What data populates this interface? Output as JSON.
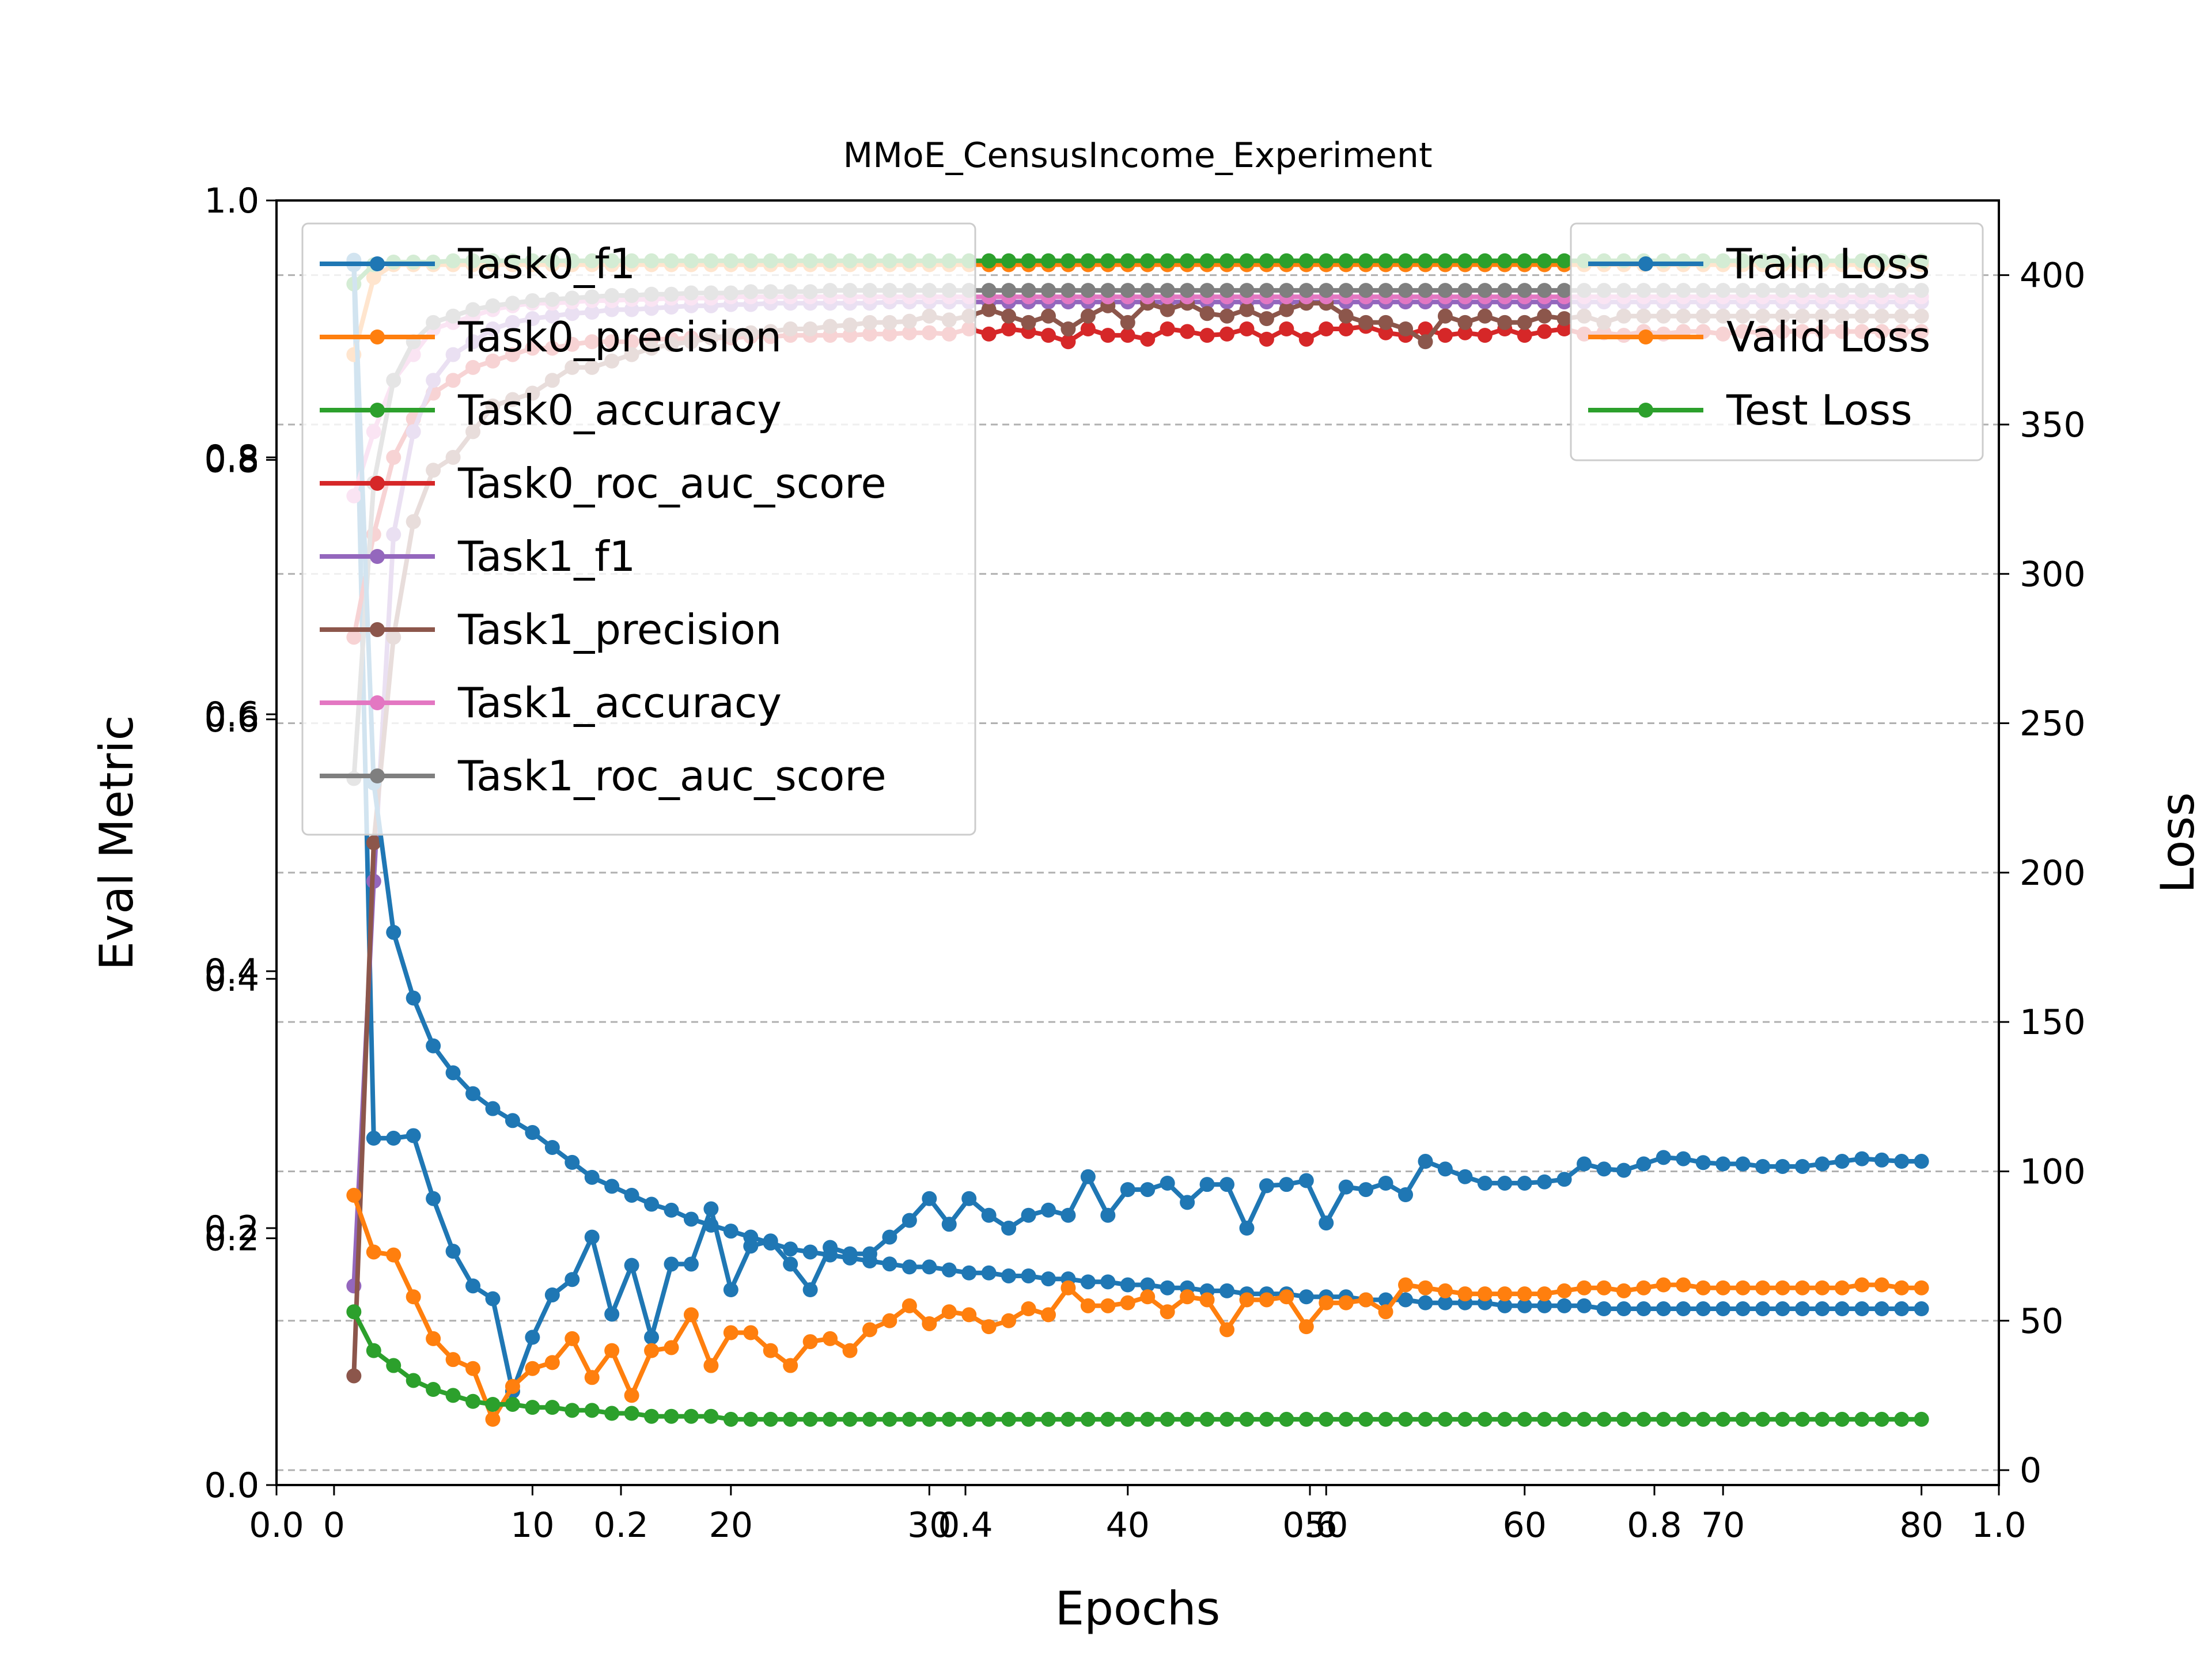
{
  "chart_data": {
    "type": "line",
    "title": "MMoE_CensusIncome_Experiment",
    "xlabel": "Epochs",
    "ylabel_left": "Eval Metric",
    "ylabel_right": "Loss",
    "grid": "horizontal dashed (right axis)",
    "x": [
      1,
      2,
      3,
      4,
      5,
      6,
      7,
      8,
      9,
      10,
      11,
      12,
      13,
      14,
      15,
      16,
      17,
      18,
      19,
      20,
      21,
      22,
      23,
      24,
      25,
      26,
      27,
      28,
      29,
      30,
      31,
      32,
      33,
      34,
      35,
      36,
      37,
      38,
      39,
      40,
      41,
      42,
      43,
      44,
      45,
      46,
      47,
      48,
      49,
      50,
      51,
      52,
      53,
      54,
      55,
      56,
      57,
      58,
      59,
      60,
      61,
      62,
      63,
      64,
      65,
      66,
      67,
      68,
      69,
      70,
      71,
      72,
      73,
      74,
      75,
      76,
      77,
      78,
      79,
      80
    ],
    "xlim": [
      -2.9,
      83.9
    ],
    "xticks": [
      0,
      10,
      20,
      30,
      40,
      50,
      60,
      70,
      80
    ],
    "extra_xticks": [
      0.0,
      0.2,
      0.4,
      0.6,
      0.8,
      1.0
    ],
    "left_axis": {
      "ylim": [
        0.0,
        1.0
      ],
      "yticks": [
        "0.0",
        "0.2",
        "0.4",
        "0.6",
        "0.8",
        "1.0"
      ],
      "legend_location": "upper left",
      "series": [
        {
          "name": "Task0_f1",
          "color": "#1f77b4",
          "values": [
            0.95,
            0.27,
            0.27,
            0.272,
            0.223,
            0.182,
            0.155,
            0.145,
            0.073,
            0.115,
            0.148,
            0.16,
            0.193,
            0.133,
            0.171,
            0.115,
            0.172,
            0.172,
            0.215,
            0.152,
            0.186,
            0.19,
            0.172,
            0.152,
            0.185,
            0.18,
            0.18,
            0.193,
            0.206,
            0.223,
            0.203,
            0.223,
            0.21,
            0.2,
            0.21,
            0.214,
            0.21,
            0.24,
            0.21,
            0.23,
            0.23,
            0.235,
            0.22,
            0.234,
            0.234,
            0.2,
            0.233,
            0.234,
            0.237,
            0.204,
            0.232,
            0.23,
            0.235,
            0.226,
            0.252,
            0.246,
            0.24,
            0.235,
            0.235,
            0.235,
            0.236,
            0.238,
            0.25,
            0.246,
            0.245,
            0.25,
            0.255,
            0.254,
            0.251,
            0.25,
            0.25,
            0.248,
            0.248,
            0.248,
            0.25,
            0.252,
            0.254,
            0.253,
            0.252,
            0.252
          ]
        },
        {
          "name": "Task0_precision",
          "color": "#ff7f0e",
          "values": [
            0.88,
            0.94,
            0.95,
            0.95,
            0.95,
            0.95,
            0.95,
            0.95,
            0.95,
            0.95,
            0.95,
            0.95,
            0.95,
            0.95,
            0.95,
            0.95,
            0.95,
            0.95,
            0.95,
            0.95,
            0.95,
            0.95,
            0.95,
            0.95,
            0.95,
            0.95,
            0.95,
            0.95,
            0.95,
            0.95,
            0.95,
            0.95,
            0.95,
            0.95,
            0.95,
            0.95,
            0.95,
            0.95,
            0.95,
            0.95,
            0.95,
            0.95,
            0.95,
            0.95,
            0.95,
            0.95,
            0.95,
            0.95,
            0.95,
            0.95,
            0.95,
            0.95,
            0.95,
            0.95,
            0.95,
            0.95,
            0.95,
            0.95,
            0.95,
            0.95,
            0.95,
            0.95,
            0.95,
            0.95,
            0.95,
            0.95,
            0.95,
            0.95,
            0.95,
            0.95,
            0.95,
            0.95,
            0.95,
            0.95,
            0.95,
            0.95,
            0.95,
            0.95,
            0.95,
            0.95
          ]
        },
        {
          "name": "Task0_accuracy",
          "color": "#2ca02c",
          "values": [
            0.935,
            0.95,
            0.952,
            0.952,
            0.952,
            0.953,
            0.953,
            0.953,
            0.953,
            0.953,
            0.953,
            0.953,
            0.953,
            0.953,
            0.953,
            0.953,
            0.953,
            0.953,
            0.953,
            0.953,
            0.953,
            0.953,
            0.953,
            0.953,
            0.953,
            0.953,
            0.953,
            0.953,
            0.953,
            0.953,
            0.953,
            0.953,
            0.953,
            0.953,
            0.953,
            0.953,
            0.953,
            0.953,
            0.953,
            0.953,
            0.953,
            0.953,
            0.953,
            0.953,
            0.953,
            0.953,
            0.953,
            0.953,
            0.953,
            0.953,
            0.953,
            0.953,
            0.953,
            0.953,
            0.953,
            0.953,
            0.953,
            0.953,
            0.953,
            0.953,
            0.953,
            0.953,
            0.953,
            0.953,
            0.953,
            0.953,
            0.953,
            0.953,
            0.953,
            0.953,
            0.953,
            0.953,
            0.953,
            0.953,
            0.953,
            0.953,
            0.953,
            0.953,
            0.953,
            0.953
          ]
        },
        {
          "name": "Task0_roc_auc_score",
          "color": "#d62728",
          "values": [
            0.66,
            0.74,
            0.8,
            0.83,
            0.85,
            0.86,
            0.87,
            0.875,
            0.88,
            0.885,
            0.885,
            0.888,
            0.89,
            0.89,
            0.89,
            0.892,
            0.892,
            0.893,
            0.893,
            0.893,
            0.894,
            0.894,
            0.895,
            0.895,
            0.895,
            0.895,
            0.896,
            0.896,
            0.897,
            0.897,
            0.896,
            0.9,
            0.896,
            0.9,
            0.898,
            0.895,
            0.89,
            0.9,
            0.895,
            0.895,
            0.892,
            0.9,
            0.898,
            0.895,
            0.896,
            0.9,
            0.892,
            0.9,
            0.892,
            0.9,
            0.9,
            0.902,
            0.897,
            0.895,
            0.9,
            0.895,
            0.897,
            0.895,
            0.9,
            0.895,
            0.898,
            0.9,
            0.896,
            0.897,
            0.895,
            0.898,
            0.896,
            0.898,
            0.898,
            0.896,
            0.898,
            0.897,
            0.898,
            0.898,
            0.898,
            0.898,
            0.898,
            0.898,
            0.898,
            0.898
          ]
        },
        {
          "name": "Task1_f1",
          "color": "#9467bd",
          "values": [
            0.155,
            0.47,
            0.74,
            0.82,
            0.86,
            0.88,
            0.89,
            0.9,
            0.905,
            0.908,
            0.91,
            0.912,
            0.913,
            0.915,
            0.915,
            0.916,
            0.917,
            0.918,
            0.918,
            0.919,
            0.919,
            0.92,
            0.92,
            0.92,
            0.92,
            0.92,
            0.92,
            0.921,
            0.921,
            0.921,
            0.921,
            0.921,
            0.921,
            0.921,
            0.921,
            0.921,
            0.921,
            0.921,
            0.921,
            0.921,
            0.921,
            0.921,
            0.921,
            0.921,
            0.921,
            0.921,
            0.921,
            0.921,
            0.921,
            0.921,
            0.921,
            0.921,
            0.921,
            0.921,
            0.921,
            0.921,
            0.921,
            0.921,
            0.921,
            0.921,
            0.921,
            0.921,
            0.921,
            0.921,
            0.921,
            0.921,
            0.921,
            0.921,
            0.921,
            0.921,
            0.921,
            0.921,
            0.921,
            0.921,
            0.921,
            0.921,
            0.921,
            0.921,
            0.921,
            0.921
          ]
        },
        {
          "name": "Task1_precision",
          "color": "#8c564b",
          "values": [
            0.085,
            0.5,
            0.66,
            0.75,
            0.79,
            0.8,
            0.82,
            0.84,
            0.845,
            0.85,
            0.86,
            0.87,
            0.87,
            0.875,
            0.88,
            0.885,
            0.888,
            0.89,
            0.893,
            0.895,
            0.897,
            0.898,
            0.9,
            0.9,
            0.902,
            0.903,
            0.905,
            0.905,
            0.906,
            0.91,
            0.907,
            0.91,
            0.915,
            0.91,
            0.905,
            0.91,
            0.9,
            0.91,
            0.918,
            0.905,
            0.92,
            0.915,
            0.92,
            0.912,
            0.91,
            0.915,
            0.908,
            0.915,
            0.92,
            0.92,
            0.91,
            0.905,
            0.905,
            0.9,
            0.89,
            0.91,
            0.905,
            0.91,
            0.905,
            0.905,
            0.91,
            0.908,
            0.91,
            0.905,
            0.91,
            0.91,
            0.91,
            0.91,
            0.91,
            0.91,
            0.91,
            0.91,
            0.91,
            0.91,
            0.91,
            0.91,
            0.91,
            0.91,
            0.91,
            0.91
          ]
        },
        {
          "name": "Task1_accuracy",
          "color": "#e377c2",
          "values": [
            0.77,
            0.82,
            0.86,
            0.88,
            0.9,
            0.905,
            0.91,
            0.915,
            0.918,
            0.92,
            0.92,
            0.921,
            0.922,
            0.922,
            0.923,
            0.923,
            0.924,
            0.924,
            0.924,
            0.925,
            0.925,
            0.925,
            0.925,
            0.925,
            0.925,
            0.925,
            0.925,
            0.925,
            0.925,
            0.925,
            0.925,
            0.925,
            0.925,
            0.925,
            0.925,
            0.925,
            0.925,
            0.925,
            0.925,
            0.925,
            0.925,
            0.925,
            0.925,
            0.925,
            0.925,
            0.925,
            0.925,
            0.925,
            0.925,
            0.925,
            0.925,
            0.925,
            0.925,
            0.925,
            0.925,
            0.925,
            0.925,
            0.925,
            0.925,
            0.925,
            0.925,
            0.925,
            0.925,
            0.925,
            0.925,
            0.925,
            0.925,
            0.925,
            0.925,
            0.925,
            0.925,
            0.925,
            0.925,
            0.925,
            0.925,
            0.925,
            0.925,
            0.925,
            0.925,
            0.925
          ]
        },
        {
          "name": "Task1_roc_auc_score",
          "color": "#7f7f7f",
          "values": [
            0.55,
            0.78,
            0.86,
            0.89,
            0.905,
            0.91,
            0.915,
            0.918,
            0.92,
            0.922,
            0.923,
            0.924,
            0.925,
            0.926,
            0.926,
            0.927,
            0.927,
            0.928,
            0.928,
            0.928,
            0.929,
            0.929,
            0.929,
            0.929,
            0.93,
            0.93,
            0.93,
            0.93,
            0.93,
            0.93,
            0.93,
            0.93,
            0.93,
            0.93,
            0.93,
            0.93,
            0.93,
            0.93,
            0.93,
            0.93,
            0.93,
            0.93,
            0.93,
            0.93,
            0.93,
            0.93,
            0.93,
            0.93,
            0.93,
            0.93,
            0.93,
            0.93,
            0.93,
            0.93,
            0.93,
            0.93,
            0.93,
            0.93,
            0.93,
            0.93,
            0.93,
            0.93,
            0.93,
            0.93,
            0.93,
            0.93,
            0.93,
            0.93,
            0.93,
            0.93,
            0.93,
            0.93,
            0.93,
            0.93,
            0.93,
            0.93,
            0.93,
            0.93,
            0.93,
            0.93
          ]
        }
      ]
    },
    "right_axis": {
      "ylim": [
        -5,
        425
      ],
      "yticks": [
        0,
        50,
        100,
        150,
        200,
        250,
        300,
        350,
        400
      ],
      "legend_location": "upper right",
      "series": [
        {
          "name": "Train Loss",
          "color": "#1f77b4",
          "values": [
            405,
            230,
            180,
            158,
            142,
            133,
            126,
            121,
            117,
            113,
            108,
            103,
            98,
            95,
            92,
            89,
            87,
            84,
            82,
            80,
            78,
            76,
            74,
            73,
            72,
            71,
            70,
            69,
            68,
            68,
            67,
            66,
            66,
            65,
            65,
            64,
            64,
            63,
            63,
            62,
            62,
            61,
            61,
            60,
            60,
            59,
            59,
            59,
            58,
            58,
            58,
            57,
            57,
            57,
            56,
            56,
            56,
            56,
            55,
            55,
            55,
            55,
            55,
            54,
            54,
            54,
            54,
            54,
            54,
            54,
            54,
            54,
            54,
            54,
            54,
            54,
            54,
            54,
            54,
            54
          ]
        },
        {
          "name": "Valid Loss",
          "color": "#ff7f0e",
          "values": [
            92,
            73,
            72,
            58,
            44,
            37,
            34,
            17,
            28,
            34,
            36,
            44,
            31,
            40,
            25,
            40,
            41,
            52,
            35,
            46,
            46,
            40,
            35,
            43,
            44,
            40,
            47,
            50,
            55,
            49,
            53,
            52,
            48,
            50,
            54,
            52,
            61,
            55,
            55,
            56,
            58,
            53,
            58,
            57,
            47,
            57,
            57,
            58,
            48,
            56,
            56,
            57,
            53,
            62,
            61,
            60,
            59,
            59,
            59,
            59,
            59,
            60,
            61,
            61,
            60,
            61,
            62,
            62,
            61,
            61,
            61,
            61,
            61,
            61,
            61,
            61,
            62,
            62,
            61,
            61
          ]
        },
        {
          "name": "Test Loss",
          "color": "#2ca02c",
          "values": [
            53,
            40,
            35,
            30,
            27,
            25,
            23,
            22,
            22,
            21,
            21,
            20,
            20,
            19,
            19,
            18,
            18,
            18,
            18,
            17,
            17,
            17,
            17,
            17,
            17,
            17,
            17,
            17,
            17,
            17,
            17,
            17,
            17,
            17,
            17,
            17,
            17,
            17,
            17,
            17,
            17,
            17,
            17,
            17,
            17,
            17,
            17,
            17,
            17,
            17,
            17,
            17,
            17,
            17,
            17,
            17,
            17,
            17,
            17,
            17,
            17,
            17,
            17,
            17,
            17,
            17,
            17,
            17,
            17,
            17,
            17,
            17,
            17,
            17,
            17,
            17,
            17,
            17,
            17,
            17
          ]
        }
      ]
    }
  }
}
